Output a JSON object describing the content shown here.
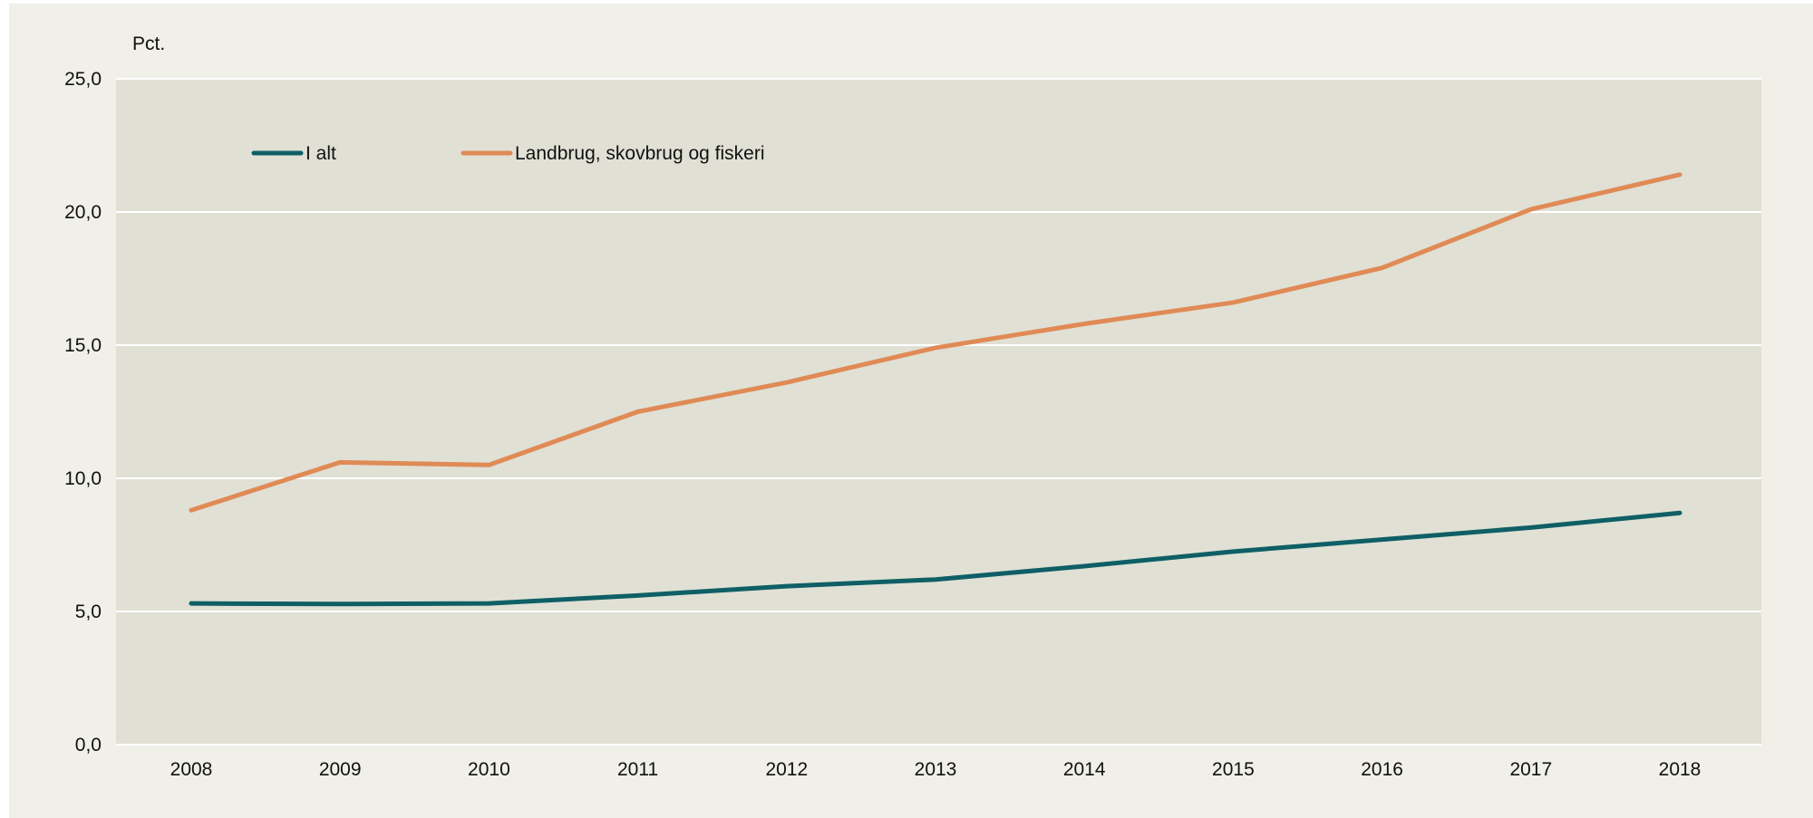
{
  "chart_data": {
    "type": "line",
    "y_unit_label": "Pct.",
    "categories": [
      "2008",
      "2009",
      "2010",
      "2011",
      "2012",
      "2013",
      "2014",
      "2015",
      "2016",
      "2017",
      "2018"
    ],
    "y_ticks": [
      "0,0",
      "5,0",
      "10,0",
      "15,0",
      "20,0",
      "25,0"
    ],
    "ylim": [
      0,
      25
    ],
    "grid": true,
    "legend_position": "top-left",
    "series": [
      {
        "name": "I alt",
        "color": "#0f5f66",
        "values": [
          5.3,
          5.28,
          5.3,
          5.6,
          5.95,
          6.2,
          6.7,
          7.25,
          7.7,
          8.15,
          8.7
        ]
      },
      {
        "name": "Landbrug, skovbrug og fiskeri",
        "color": "#e08a55",
        "values": [
          8.8,
          10.6,
          10.5,
          12.5,
          13.6,
          14.9,
          15.8,
          16.6,
          17.9,
          20.1,
          21.4
        ]
      }
    ],
    "colors": {
      "background": "#f0efe8",
      "plot_area": "#e0e0d5",
      "gridline": "#ffffff"
    }
  }
}
